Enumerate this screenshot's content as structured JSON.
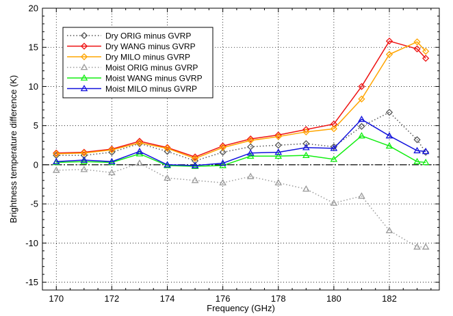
{
  "chart_data": {
    "type": "line",
    "xlabel": "Frequency (GHz)",
    "ylabel": "Brightness temperature difference (K)",
    "xlim": [
      169.5,
      183.8
    ],
    "ylim": [
      -16,
      20
    ],
    "x_ticks": [
      170,
      172,
      174,
      176,
      178,
      180,
      182
    ],
    "x_tick_labels": [
      "170",
      "172",
      "174",
      "176",
      "178",
      "180",
      "182"
    ],
    "y_ticks": [
      -15,
      -10,
      -5,
      0,
      5,
      10,
      15,
      20
    ],
    "y_tick_labels": [
      "-15",
      "-10",
      "-5",
      "0",
      "5",
      "10",
      "15",
      "20"
    ],
    "grid": true,
    "zero_line": true,
    "legend_position": "top-left",
    "x": [
      170,
      171,
      172,
      173,
      174,
      175,
      176,
      177,
      178,
      179,
      180,
      181,
      182,
      183,
      183.31
    ],
    "series": [
      {
        "name": "Dry ORIG minus GVRP",
        "color": "#555555",
        "dash": "dotted",
        "marker": "diamond",
        "values": [
          1.2,
          1.2,
          1.6,
          2.7,
          1.7,
          0.5,
          1.6,
          2.3,
          2.5,
          2.7,
          2.3,
          4.9,
          6.7,
          3.2,
          1.6
        ]
      },
      {
        "name": "Dry WANG minus GVRP",
        "color": "#ee1111",
        "dash": "solid",
        "marker": "diamond",
        "values": [
          1.5,
          1.6,
          2.0,
          3.0,
          2.2,
          1.0,
          2.4,
          3.3,
          3.8,
          4.5,
          5.2,
          10.0,
          15.8,
          14.8,
          13.6
        ]
      },
      {
        "name": "Dry MILO minus GVRP",
        "color": "#ffa500",
        "dash": "solid",
        "marker": "diamond",
        "values": [
          1.4,
          1.5,
          1.9,
          2.8,
          2.1,
          0.8,
          2.2,
          3.1,
          3.6,
          4.2,
          4.6,
          8.4,
          14.1,
          15.7,
          14.5
        ]
      },
      {
        "name": "Moist ORIG minus GVRP",
        "color": "#9a9a9a",
        "dash": "dotted",
        "marker": "triangle",
        "values": [
          -0.7,
          -0.6,
          -1.0,
          0.2,
          -1.7,
          -2.0,
          -2.3,
          -1.5,
          -2.3,
          -3.1,
          -4.9,
          -4.0,
          -8.4,
          -10.5,
          -10.5
        ]
      },
      {
        "name": "Moist WANG minus GVRP",
        "color": "#11ee11",
        "dash": "solid",
        "marker": "triangle",
        "values": [
          0.3,
          0.4,
          0.3,
          1.4,
          -0.1,
          -0.2,
          -0.1,
          1.1,
          1.1,
          1.2,
          0.7,
          3.7,
          2.4,
          0.4,
          0.3
        ]
      },
      {
        "name": "Moist MILO minus GVRP",
        "color": "#1111dd",
        "dash": "solid",
        "marker": "triangle",
        "values": [
          0.4,
          0.6,
          0.4,
          1.7,
          0.0,
          -0.1,
          0.2,
          1.5,
          1.6,
          2.2,
          2.1,
          5.8,
          3.7,
          1.8,
          1.7
        ]
      }
    ]
  }
}
